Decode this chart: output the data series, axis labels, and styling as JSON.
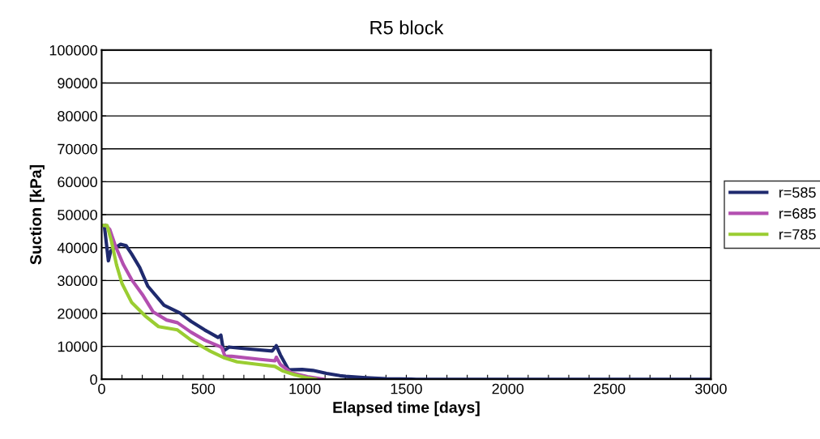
{
  "chart_data": {
    "type": "line",
    "title": "R5 block",
    "xlabel": "Elapsed time [days]",
    "ylabel": "Suction [kPa]",
    "xlim": [
      0,
      3000
    ],
    "ylim": [
      0,
      100000
    ],
    "xticks": [
      0,
      {
        "value": 100,
        "label": null
      },
      {
        "value": 200,
        "label": null
      },
      {
        "value": 300,
        "label": null
      },
      {
        "value": 400,
        "label": null
      },
      500,
      {
        "value": 600,
        "label": null
      },
      {
        "value": 700,
        "label": null
      },
      {
        "value": 800,
        "label": null
      },
      {
        "value": 900,
        "label": null
      },
      1000,
      {
        "value": 1100,
        "label": null
      },
      {
        "value": 1200,
        "label": null
      },
      {
        "value": 1300,
        "label": null
      },
      {
        "value": 1400,
        "label": null
      },
      1500,
      {
        "value": 1600,
        "label": null
      },
      {
        "value": 1700,
        "label": null
      },
      {
        "value": 1800,
        "label": null
      },
      {
        "value": 1900,
        "label": null
      },
      2000,
      {
        "value": 2100,
        "label": null
      },
      {
        "value": 2200,
        "label": null
      },
      {
        "value": 2300,
        "label": null
      },
      {
        "value": 2400,
        "label": null
      },
      2500,
      {
        "value": 2600,
        "label": null
      },
      {
        "value": 2700,
        "label": null
      },
      {
        "value": 2800,
        "label": null
      },
      {
        "value": 2900,
        "label": null
      },
      3000
    ],
    "yticks": [
      0,
      10000,
      20000,
      30000,
      40000,
      50000,
      60000,
      70000,
      80000,
      90000,
      100000
    ],
    "grid": "y",
    "legend": "right",
    "marker": "none",
    "line_style": "solid",
    "series": [
      {
        "name": "r=585",
        "color": "#1f2a6e",
        "x": [
          13,
          33,
          45,
          67,
          93,
          120,
          147,
          187,
          227,
          307,
          387,
          440,
          507,
          573,
          587,
          600,
          627,
          707,
          840,
          860,
          880,
          920,
          987,
          1040,
          1107,
          1173,
          1200,
          1300,
          1400,
          1550,
          3000
        ],
        "values": [
          46700,
          36000,
          39000,
          40000,
          41000,
          40600,
          38100,
          34000,
          28300,
          22500,
          20100,
          17600,
          15000,
          12700,
          13400,
          8600,
          9800,
          9300,
          8600,
          10200,
          7400,
          2900,
          3000,
          2700,
          1800,
          1100,
          900,
          500,
          200,
          0,
          0
        ]
      },
      {
        "name": "r=685",
        "color": "#b34fb0",
        "x": [
          20,
          40,
          67,
          107,
          147,
          200,
          253,
          320,
          373,
          440,
          507,
          587,
          593,
          607,
          640,
          773,
          853,
          860,
          880,
          933,
          1013,
          1093
        ],
        "values": [
          46700,
          45500,
          40600,
          34800,
          30300,
          25800,
          20500,
          18000,
          17200,
          14300,
          11900,
          9800,
          9400,
          7000,
          7000,
          6100,
          5600,
          6700,
          4500,
          2000,
          800,
          0
        ]
      },
      {
        "name": "r=785",
        "color": "#9acd32",
        "x": [
          0,
          27,
          47,
          73,
          100,
          147,
          213,
          280,
          373,
          440,
          533,
          600,
          667,
          773,
          853,
          893,
          947,
          1013,
          1053
        ],
        "values": [
          46700,
          46700,
          42200,
          34800,
          29100,
          23400,
          19300,
          16000,
          15000,
          11900,
          8600,
          6600,
          5300,
          4500,
          3900,
          2500,
          1400,
          400,
          0
        ]
      }
    ]
  }
}
